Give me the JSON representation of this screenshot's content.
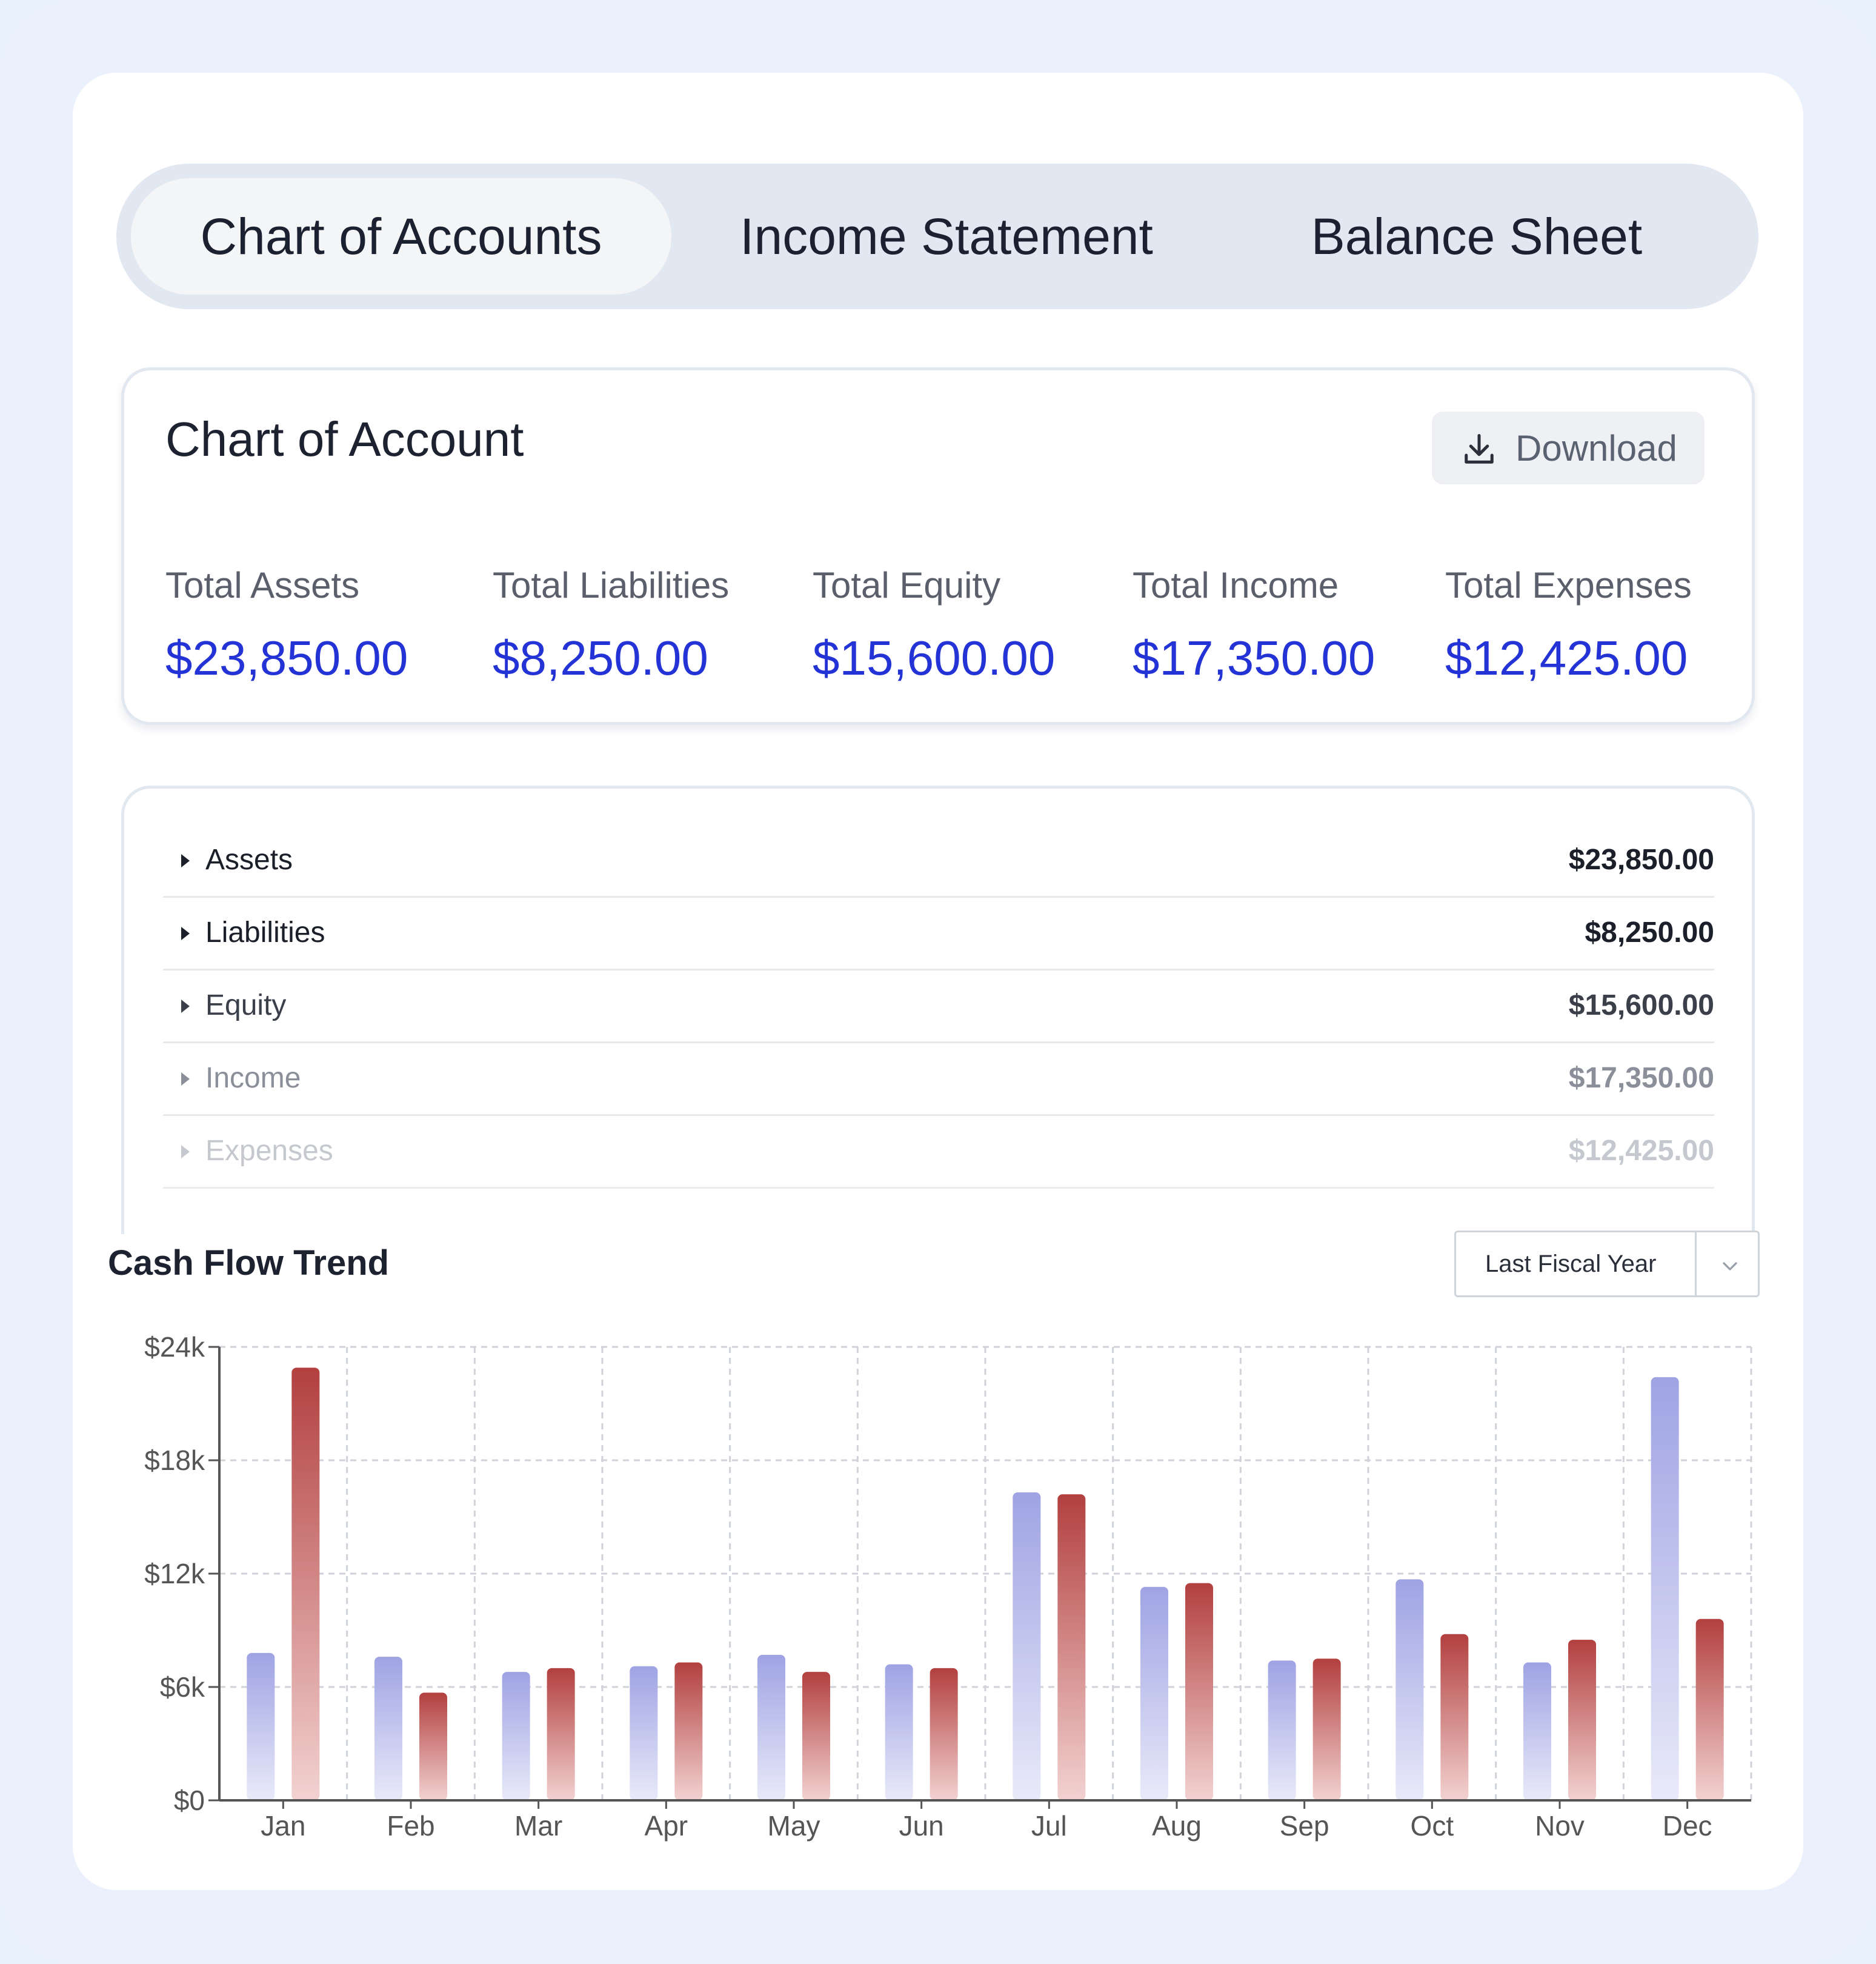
{
  "tabs": [
    {
      "label": "Chart of Accounts",
      "active": true
    },
    {
      "label": "Income Statement",
      "active": false
    },
    {
      "label": "Balance Sheet",
      "active": false
    }
  ],
  "summary": {
    "title": "Chart of Account",
    "download_label": "Download",
    "metrics": [
      {
        "label": "Total Assets",
        "value": "$23,850.00"
      },
      {
        "label": "Total Liabilities",
        "value": "$8,250.00"
      },
      {
        "label": "Total Equity",
        "value": "$15,600.00"
      },
      {
        "label": "Total Income",
        "value": "$17,350.00"
      },
      {
        "label": "Total Expenses",
        "value": "$12,425.00"
      }
    ]
  },
  "accounts": [
    {
      "name": "Assets",
      "amount": "$23,850.00"
    },
    {
      "name": "Liabilities",
      "amount": "$8,250.00"
    },
    {
      "name": "Equity",
      "amount": "$15,600.00"
    },
    {
      "name": "Income",
      "amount": "$17,350.00"
    },
    {
      "name": "Expenses",
      "amount": "$12,425.00"
    }
  ],
  "cash_flow": {
    "title": "Cash Flow Trend",
    "period_select": "Last Fiscal Year"
  },
  "colors": {
    "accent_value": "#2433d6",
    "series_a": "#9fa3e3",
    "series_b": "#b2403f"
  },
  "chart_data": {
    "type": "bar",
    "categories": [
      "Jan",
      "Feb",
      "Mar",
      "Apr",
      "May",
      "Jun",
      "Jul",
      "Aug",
      "Sep",
      "Oct",
      "Nov",
      "Dec"
    ],
    "series": [
      {
        "values": [
          7800,
          7600,
          6800,
          7100,
          7700,
          7200,
          16300,
          11300,
          7400,
          11700,
          7300,
          22400
        ]
      },
      {
        "values": [
          22900,
          5700,
          7000,
          7300,
          6800,
          7000,
          16200,
          11500,
          7500,
          8800,
          8500,
          9600
        ]
      }
    ],
    "y_ticks": [
      "$0",
      "$6k",
      "$12k",
      "$18k",
      "$24k"
    ],
    "y_tick_values": [
      0,
      6000,
      12000,
      18000,
      24000
    ],
    "ylim": [
      0,
      24000
    ],
    "grid": true,
    "legend": "none"
  }
}
